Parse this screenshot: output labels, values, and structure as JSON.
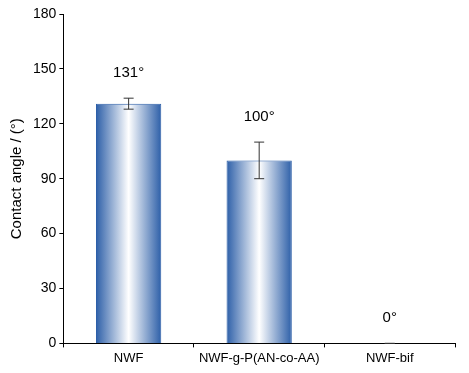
{
  "chart_data": {
    "type": "bar",
    "categories": [
      "NWF",
      "NWF-g-P(AN-co-AA)",
      "NWF-bif"
    ],
    "values": [
      131,
      100,
      0
    ],
    "errors": [
      3,
      10,
      0
    ],
    "value_labels": [
      "131°",
      "100°",
      "0°"
    ],
    "data_labels": true,
    "color": "#2d5fa8",
    "ylabel": "Contact angle / (°)",
    "ylim": [
      0,
      180
    ],
    "yticks": [
      0,
      30,
      60,
      90,
      120,
      150,
      180
    ],
    "grid": false
  }
}
